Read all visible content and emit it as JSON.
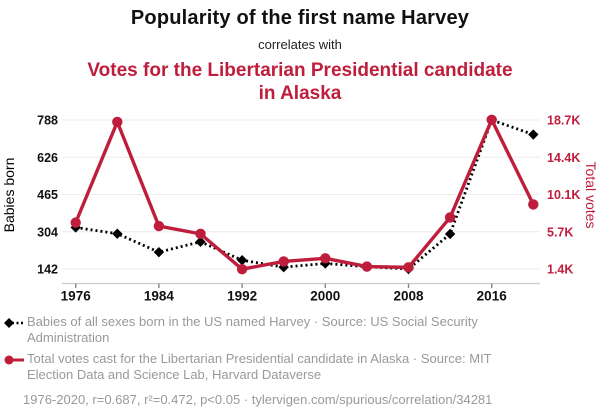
{
  "header": {
    "title": "Popularity of the first name Harvey",
    "connector": "correlates with",
    "subtitle": "Votes for the Libertarian Presidential candidate in Alaska"
  },
  "chart_data": {
    "type": "line",
    "x": [
      1976,
      1980,
      1984,
      1988,
      1992,
      1996,
      2000,
      2004,
      2008,
      2012,
      2016,
      2020
    ],
    "series": [
      {
        "name": "Babies of all sexes born in the US named Harvey",
        "axis": "left",
        "color": "#000000",
        "line_style": "dotted",
        "marker": "diamond",
        "values": [
          322,
          295,
          215,
          260,
          180,
          150,
          166,
          152,
          142,
          294,
          788,
          725
        ]
      },
      {
        "name": "Total votes cast for the Libertarian Presidential candidate in Alaska",
        "axis": "right",
        "color": "#be1e3c",
        "line_style": "solid",
        "marker": "circle",
        "values": [
          6785,
          18480,
          6380,
          5480,
          1380,
          2280,
          2640,
          1680,
          1590,
          7390,
          18725,
          8900
        ]
      }
    ],
    "left_axis": {
      "label": "Babies born",
      "ticks": [
        "142",
        "304",
        "465",
        "626",
        "788"
      ],
      "range": [
        142,
        788
      ]
    },
    "right_axis": {
      "label": "Total votes",
      "ticks": [
        "1.4K",
        "5.7K",
        "10.1K",
        "14.4K",
        "18.7K"
      ],
      "range": [
        1400,
        18700
      ]
    },
    "x_axis": {
      "ticks": [
        1976,
        1984,
        1992,
        2000,
        2008,
        2016
      ],
      "range": [
        1976,
        2020
      ]
    },
    "grid": "horizontal",
    "legend_position": "bottom"
  },
  "legend": {
    "items": [
      {
        "label": "Babies of all sexes born in the US named Harvey · Source: US Social Security Administration",
        "marker": "black-diamond-dotted"
      },
      {
        "label": "Total votes cast for the Libertarian Presidential candidate in Alaska · Source: MIT Election Data and Science Lab, Harvard Dataverse",
        "marker": "red-circle-solid"
      }
    ],
    "footer": "1976-2020, r=0.687, r²=0.472, p<0.05 · tylervigen.com/spurious/correlation/34281"
  },
  "colors": {
    "accent": "#be1e3c",
    "text_dark": "#111111",
    "text_gray": "#999999",
    "grid": "#ececec",
    "axis_line": "#cccccc",
    "tick_mark": "#888888"
  }
}
